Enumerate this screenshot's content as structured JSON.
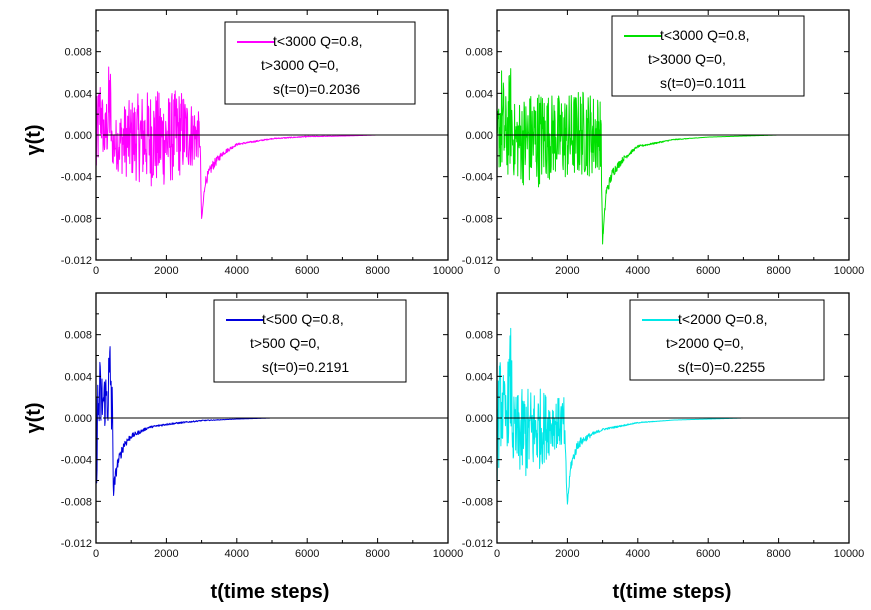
{
  "figure": {
    "ylabel": "γ(t)",
    "xlabel": "t(time steps)"
  },
  "chart_data": [
    {
      "type": "line",
      "color": "#ff00ff",
      "xlim": [
        0,
        10000
      ],
      "ylim": [
        -0.012,
        0.012
      ],
      "xticks": [
        0,
        2000,
        4000,
        6000,
        8000,
        10000
      ],
      "yticks": [
        -0.012,
        -0.008,
        -0.004,
        0.0,
        0.004,
        0.008
      ],
      "xtick_labels": [
        "0",
        "2000",
        "4000",
        "6000",
        "8000",
        "10000"
      ],
      "ytick_labels": [
        "-0.012",
        "-0.008",
        "-0.004",
        "0.000",
        "0.004",
        "0.008"
      ],
      "legend": [
        "t<3000 Q=0.8,",
        "t>3000 Q=0,",
        "s(t=0)=0.2036"
      ],
      "series": [
        {
          "x": [
            0,
            120,
            250,
            400,
            450,
            800,
            1200,
            1600,
            2000,
            2400,
            2800,
            2950,
            3000,
            3100,
            3300,
            3600,
            4000,
            5000,
            6000,
            7000,
            8000,
            9000
          ],
          "y": [
            0.003,
            0.006,
            0.002,
            0.0085,
            0.001,
            0.003,
            0.004,
            0.0045,
            0.004,
            0.0045,
            0.003,
            0.002,
            -0.008,
            -0.004,
            -0.0025,
            -0.0015,
            -0.0008,
            -0.0003,
            -0.0001,
            -0.0001,
            0.0,
            0.0
          ],
          "y_low": [
            -0.006,
            -0.001,
            -0.003,
            -0.002,
            -0.003,
            -0.004,
            -0.0045,
            -0.005,
            -0.005,
            -0.004,
            -0.003,
            -0.002,
            -0.0085,
            -0.005,
            -0.0035,
            -0.002,
            -0.001,
            -0.0004,
            -0.0002,
            -0.0001,
            0.0,
            0.0
          ]
        }
      ]
    },
    {
      "type": "line",
      "color": "#00e000",
      "xlim": [
        0,
        10000
      ],
      "ylim": [
        -0.012,
        0.012
      ],
      "xticks": [
        0,
        2000,
        4000,
        6000,
        8000,
        10000
      ],
      "yticks": [
        -0.012,
        -0.008,
        -0.004,
        0.0,
        0.004,
        0.008
      ],
      "xtick_labels": [
        "0",
        "2000",
        "4000",
        "6000",
        "8000",
        "10000"
      ],
      "ytick_labels": [
        "-0.012",
        "-0.008",
        "-0.004",
        "0.000",
        "0.004",
        "0.008"
      ],
      "legend": [
        "t<3000 Q=0.8,",
        "t>3000 Q=0,",
        "s(t=0)=0.1011"
      ],
      "series": [
        {
          "x": [
            0,
            120,
            250,
            400,
            450,
            800,
            1200,
            1600,
            2000,
            2400,
            2800,
            2950,
            3000,
            3100,
            3300,
            3600,
            4000,
            5000,
            6000,
            7000,
            8000,
            9000
          ],
          "y": [
            0.002,
            0.007,
            0.004,
            0.0072,
            0.003,
            0.004,
            0.0045,
            0.004,
            0.004,
            0.0045,
            0.004,
            0.004,
            -0.01,
            -0.005,
            -0.003,
            -0.002,
            -0.001,
            -0.0004,
            -0.0002,
            -0.0001,
            0.0,
            0.0
          ],
          "y_low": [
            -0.003,
            -0.004,
            -0.005,
            -0.003,
            -0.004,
            -0.005,
            -0.005,
            -0.004,
            -0.0045,
            -0.004,
            -0.004,
            -0.003,
            -0.0105,
            -0.006,
            -0.004,
            -0.0025,
            -0.0012,
            -0.0005,
            -0.0002,
            -0.0001,
            0.0,
            0.0
          ]
        }
      ]
    },
    {
      "type": "line",
      "color": "#0000dd",
      "xlim": [
        0,
        10000
      ],
      "ylim": [
        -0.012,
        0.012
      ],
      "xticks": [
        0,
        2000,
        4000,
        6000,
        8000,
        10000
      ],
      "yticks": [
        -0.012,
        -0.008,
        -0.004,
        0.0,
        0.004,
        0.008
      ],
      "xtick_labels": [
        "0",
        "2000",
        "4000",
        "6000",
        "8000",
        "10000"
      ],
      "ytick_labels": [
        "-0.012",
        "-0.008",
        "-0.004",
        "0.000",
        "0.004",
        "0.008"
      ],
      "legend": [
        "t<500 Q=0.8,",
        "t>500 Q=0,",
        "s(t=0)=0.2191"
      ],
      "series": [
        {
          "x": [
            0,
            100,
            200,
            300,
            420,
            480,
            500,
            600,
            800,
            1000,
            1500,
            2000,
            3000,
            4000,
            5000,
            6000,
            7000,
            8000,
            9000
          ],
          "y": [
            0.003,
            0.006,
            0.004,
            0.005,
            0.0093,
            0.001,
            -0.006,
            -0.004,
            -0.002,
            -0.0015,
            -0.0008,
            -0.0005,
            -0.0002,
            -0.0001,
            0.0,
            0.0,
            0.0,
            0.0,
            0.0
          ],
          "y_low": [
            -0.0075,
            -0.002,
            -0.001,
            -0.001,
            -0.002,
            -0.006,
            -0.008,
            -0.005,
            -0.003,
            -0.002,
            -0.001,
            -0.0007,
            -0.0003,
            -0.0001,
            0.0,
            0.0,
            0.0,
            0.0,
            0.0
          ]
        }
      ]
    },
    {
      "type": "line",
      "color": "#00e8e8",
      "xlim": [
        0,
        10000
      ],
      "ylim": [
        -0.012,
        0.012
      ],
      "xticks": [
        0,
        2000,
        4000,
        6000,
        8000,
        10000
      ],
      "yticks": [
        -0.012,
        -0.008,
        -0.004,
        0.0,
        0.004,
        0.008
      ],
      "xtick_labels": [
        "0",
        "2000",
        "4000",
        "6000",
        "8000",
        "10000"
      ],
      "ytick_labels": [
        "-0.012",
        "-0.008",
        "-0.004",
        "0.000",
        "0.004",
        "0.008"
      ],
      "legend": [
        "t<2000 Q=0.8,",
        "t>2000 Q=0,",
        "s(t=0)=0.2255"
      ],
      "series": [
        {
          "x": [
            0,
            100,
            250,
            400,
            450,
            800,
            1200,
            1600,
            1900,
            2000,
            2100,
            2300,
            2600,
            3000,
            4000,
            5000,
            6000,
            7000,
            8000,
            9000
          ],
          "y": [
            0.004,
            0.006,
            0.003,
            0.0095,
            0.002,
            0.003,
            0.003,
            0.002,
            0.002,
            -0.008,
            -0.004,
            -0.002,
            -0.0015,
            -0.001,
            -0.0004,
            -0.0002,
            -0.0001,
            0.0,
            0.0,
            0.0
          ],
          "y_low": [
            -0.007,
            -0.003,
            -0.003,
            -0.002,
            -0.005,
            -0.006,
            -0.005,
            -0.003,
            -0.003,
            -0.0085,
            -0.005,
            -0.003,
            -0.002,
            -0.0012,
            -0.0005,
            -0.0002,
            -0.0001,
            0.0,
            0.0,
            0.0
          ]
        }
      ]
    }
  ]
}
